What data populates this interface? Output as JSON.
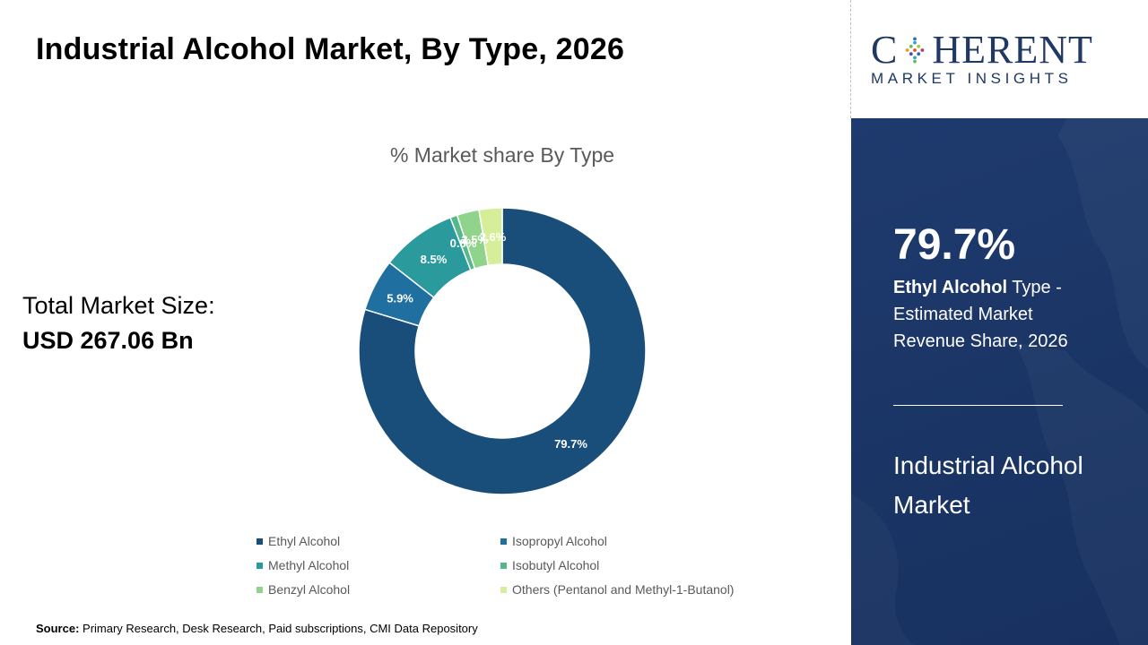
{
  "title": "Industrial Alcohol Market, By Type, 2026",
  "market_size": {
    "label": "Total Market Size:",
    "value": "USD 267.06 Bn"
  },
  "source": {
    "label": "Source:",
    "text": "Primary Research, Desk Research, Paid subscriptions, CMI Data Repository"
  },
  "logo": {
    "top_left": "C",
    "top_right": "HERENT",
    "bottom": "MARKET INSIGHTS",
    "emblem_icon": "dotted-diamond-emblem-icon"
  },
  "highlight": {
    "value": "79.7%",
    "segment_bold": "Ethyl Alcohol",
    "segment_rest": " Type -",
    "line2": "Estimated Market",
    "line3": "Revenue Share, 2026"
  },
  "report_name": {
    "line1": "Industrial Alcohol",
    "line2": "Market"
  },
  "colors": {
    "right_panel": "#1f3a6e",
    "logo_text": "#1f3864"
  },
  "chart_data": {
    "type": "pie",
    "donut": true,
    "title": "% Market share By Type",
    "legend_position": "bottom",
    "categories": [
      "Ethyl Alcohol",
      "Isopropyl Alcohol",
      "Methyl Alcohol",
      "Isobutyl Alcohol",
      "Benzyl Alcohol",
      "Others (Pentanol and Methyl-1-Butanol)"
    ],
    "values": [
      79.7,
      5.9,
      8.5,
      0.8,
      2.5,
      2.6
    ],
    "data_labels": [
      "79.7%",
      "5.9%",
      "8.5%",
      "0.8%",
      "2.5%",
      "2.6%"
    ],
    "colors": [
      "#1a4e7a",
      "#1f6fa0",
      "#2b9a9c",
      "#55b88a",
      "#8fd48a",
      "#d6ee9a"
    ]
  }
}
